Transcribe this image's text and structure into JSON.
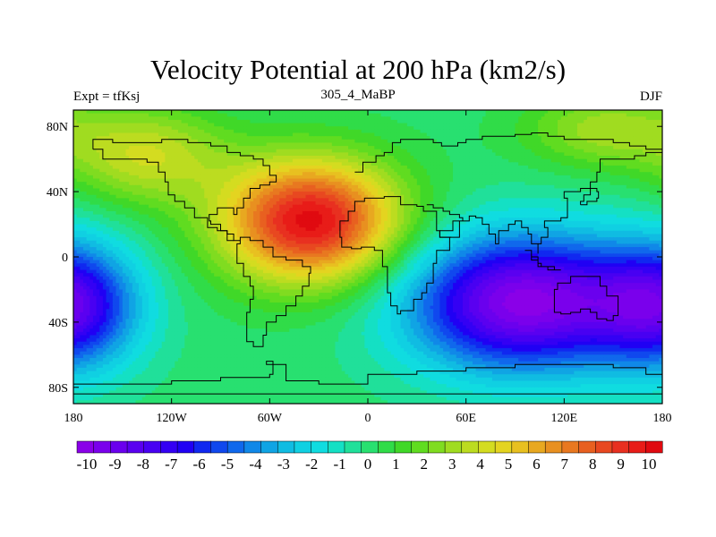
{
  "title": "Velocity Potential at 200 hPa (km2/s)",
  "left_label": "Expt = tfKsj",
  "center_label": "305_4_MaBP",
  "right_label": "DJF",
  "chart_data": {
    "type": "heatmap",
    "variable": "Velocity Potential at 200 hPa",
    "units": "km2/s",
    "experiment": "tfKsj",
    "run": "305_4_MaBP",
    "season": "DJF",
    "x_ticks": [
      {
        "value": -180,
        "label": "180"
      },
      {
        "value": -120,
        "label": "120W"
      },
      {
        "value": -60,
        "label": "60W"
      },
      {
        "value": 0,
        "label": "0"
      },
      {
        "value": 60,
        "label": "60E"
      },
      {
        "value": 120,
        "label": "120E"
      },
      {
        "value": 180,
        "label": "180"
      }
    ],
    "y_ticks": [
      {
        "value": 80,
        "label": "80N"
      },
      {
        "value": 40,
        "label": "40N"
      },
      {
        "value": 0,
        "label": "0"
      },
      {
        "value": -40,
        "label": "40S"
      },
      {
        "value": -80,
        "label": "80S"
      }
    ],
    "xlim": [
      -180,
      180
    ],
    "ylim": [
      -90,
      90
    ],
    "colorbar_labels": [
      "-10",
      "-9",
      "-8",
      "-7",
      "-6",
      "-5",
      "-4",
      "-3",
      "-2",
      "-1",
      "0",
      "1",
      "2",
      "3",
      "4",
      "5",
      "6",
      "7",
      "8",
      "9",
      "10"
    ],
    "colorbar_range": [
      -10.5,
      10.5
    ],
    "colorbar_colors": [
      "#8a00e8",
      "#7a00ec",
      "#6a00ee",
      "#5a00f0",
      "#4800f2",
      "#3400f4",
      "#2000f4",
      "#1028f0",
      "#1048ee",
      "#1068ec",
      "#1088e8",
      "#10a4e4",
      "#10bce2",
      "#10d0e2",
      "#10dce0",
      "#14e0c4",
      "#20e09a",
      "#28e070",
      "#30dc48",
      "#40d828",
      "#60dc20",
      "#80dc20",
      "#a0dc20",
      "#bcdc20",
      "#d4dc20",
      "#e4d420",
      "#e8c020",
      "#e8a820",
      "#e89020",
      "#e87820",
      "#e86020",
      "#e84820",
      "#e83020",
      "#e81c18",
      "#e00a10"
    ],
    "centers": [
      {
        "lon": -35,
        "lat": 22,
        "value": 10.2,
        "sx": 55,
        "sy": 38
      },
      {
        "lon": 95,
        "lat": -28,
        "value": -10.2,
        "sx": 70,
        "sy": 42
      },
      {
        "lon": -180,
        "lat": -30,
        "value": -7.0,
        "sx": 40,
        "sy": 38
      },
      {
        "lon": -135,
        "lat": 62,
        "value": 3.8,
        "sx": 48,
        "sy": 30
      },
      {
        "lon": 145,
        "lat": 78,
        "value": 3.0,
        "sx": 50,
        "sy": 24
      }
    ]
  }
}
